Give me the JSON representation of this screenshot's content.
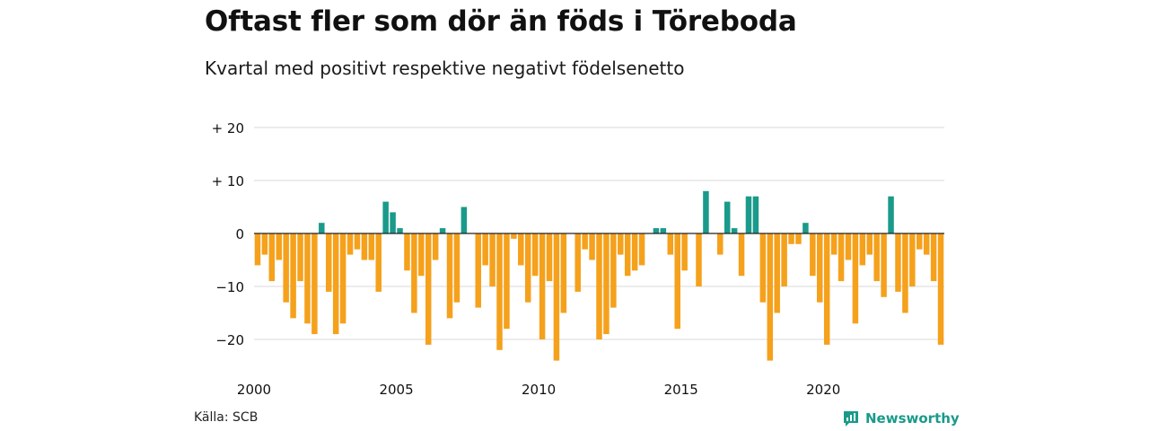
{
  "header": {
    "title": "Oftast fler som dör än föds i Töreboda",
    "subtitle": "Kvartal med positivt respektive negativt födelsenetto"
  },
  "footer": {
    "source": "Källa: SCB",
    "brand": "Newsworthy",
    "brand_icon": "newsworthy-logo-icon"
  },
  "colors": {
    "positive": "#1a9a8a",
    "negative": "#f5a11c",
    "grid": "#d9d9d9",
    "zero_line": "#222222"
  },
  "chart_data": {
    "type": "bar",
    "title": "Oftast fler som dör än föds i Töreboda",
    "subtitle": "Kvartal med positivt respektive negativt födelsenetto",
    "x_start": 2000,
    "periods_per_year": 4,
    "ylim": [
      -25,
      20
    ],
    "y_ticks": [
      20,
      10,
      0,
      -10,
      -20
    ],
    "y_tick_labels": [
      "+ 20",
      "+ 10",
      "0",
      "−10",
      "−20"
    ],
    "x_ticks": [
      "2000",
      "2005",
      "2010",
      "2015",
      "2020"
    ],
    "grid": true,
    "values": [
      -6,
      -4,
      -9,
      -5,
      -13,
      -16,
      -9,
      -17,
      -19,
      2,
      -11,
      -19,
      -17,
      -4,
      -3,
      -5,
      -5,
      -11,
      6,
      4,
      1,
      -7,
      -15,
      -8,
      -21,
      -5,
      1,
      -16,
      -13,
      5,
      0,
      -14,
      -6,
      -10,
      -22,
      -18,
      -1,
      -6,
      -13,
      -8,
      -20,
      -9,
      -24,
      -15,
      0,
      -11,
      -3,
      -5,
      -20,
      -19,
      -14,
      -4,
      -8,
      -7,
      -6,
      0,
      1,
      1,
      -4,
      -18,
      -7,
      0,
      -10,
      8,
      0,
      -4,
      6,
      1,
      -8,
      7,
      7,
      -13,
      -24,
      -15,
      -10,
      -2,
      -2,
      2,
      -8,
      -13,
      -21,
      -4,
      -9,
      -5,
      -17,
      -6,
      -4,
      -9,
      -12,
      7,
      -11,
      -15,
      -10,
      -3,
      -4,
      -9,
      -21
    ]
  }
}
